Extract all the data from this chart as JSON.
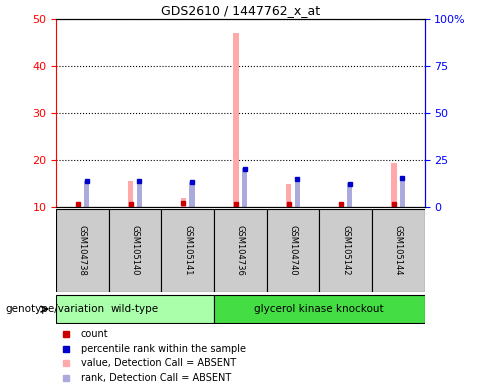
{
  "title": "GDS2610 / 1447762_x_at",
  "samples": [
    "GSM104738",
    "GSM105140",
    "GSM105141",
    "GSM104736",
    "GSM104740",
    "GSM105142",
    "GSM105144"
  ],
  "count_values": [
    10.7,
    10.7,
    11.0,
    10.7,
    10.7,
    10.8,
    10.7
  ],
  "percentile_values": [
    14.0,
    14.0,
    13.5,
    20.5,
    15.0,
    12.5,
    15.5
  ],
  "absent_value_values": [
    11.0,
    15.5,
    12.0,
    47.0,
    15.0,
    11.0,
    19.5
  ],
  "absent_rank_values": [
    14.0,
    14.5,
    13.5,
    20.8,
    15.0,
    12.7,
    15.5
  ],
  "count_color": "#cc0000",
  "percentile_color": "#0000cc",
  "absent_value_color": "#ffaaaa",
  "absent_rank_color": "#aaaadd",
  "ylim_left": [
    10,
    50
  ],
  "ylim_right": [
    0,
    100
  ],
  "yticks_left": [
    10,
    20,
    30,
    40,
    50
  ],
  "yticks_right": [
    0,
    25,
    50,
    75,
    100
  ],
  "ytick_labels_right": [
    "0",
    "25",
    "50",
    "75",
    "100%"
  ],
  "legend_items": [
    {
      "label": "count",
      "color": "#cc0000"
    },
    {
      "label": "percentile rank within the sample",
      "color": "#0000cc"
    },
    {
      "label": "value, Detection Call = ABSENT",
      "color": "#ffaaaa"
    },
    {
      "label": "rank, Detection Call = ABSENT",
      "color": "#aaaadd"
    }
  ],
  "xlabel_genotype": "genotype/variation",
  "subplot_label_wt": "wild-type",
  "subplot_label_gk": "glycerol kinase knockout",
  "wt_color": "#aaffaa",
  "gk_color": "#44dd44",
  "background_samples": "#cccccc",
  "background_plot": "#ffffff"
}
